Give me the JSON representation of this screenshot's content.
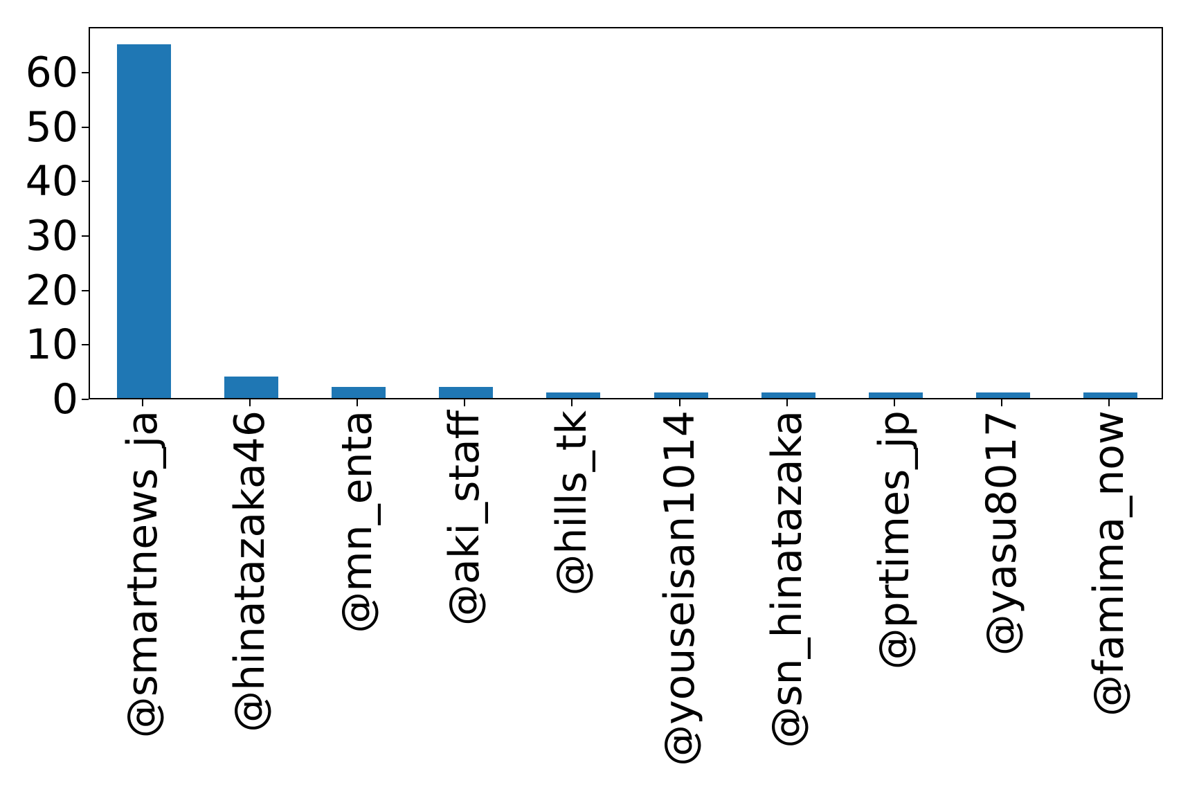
{
  "chart_data": {
    "type": "bar",
    "title": "",
    "xlabel": "",
    "ylabel": "",
    "categories": [
      "@smartnews_ja",
      "@hinatazaka46",
      "@mn_enta",
      "@aki_staff",
      "@hills_tk",
      "@youseisan1014",
      "@sn_hinatazaka",
      "@prtimes_jp",
      "@yasu8017",
      "@famima_now"
    ],
    "values": [
      65,
      4,
      2,
      2,
      1,
      1,
      1,
      1,
      1,
      1
    ],
    "yticks": [
      0,
      10,
      20,
      30,
      40,
      50,
      60
    ],
    "ylim": [
      0,
      68.4
    ],
    "x_tick_rotation": 90,
    "grid": false,
    "legend_position": "none",
    "bar_color": "#1f77b4",
    "axis_color": "#000000",
    "background_color": "#ffffff"
  }
}
